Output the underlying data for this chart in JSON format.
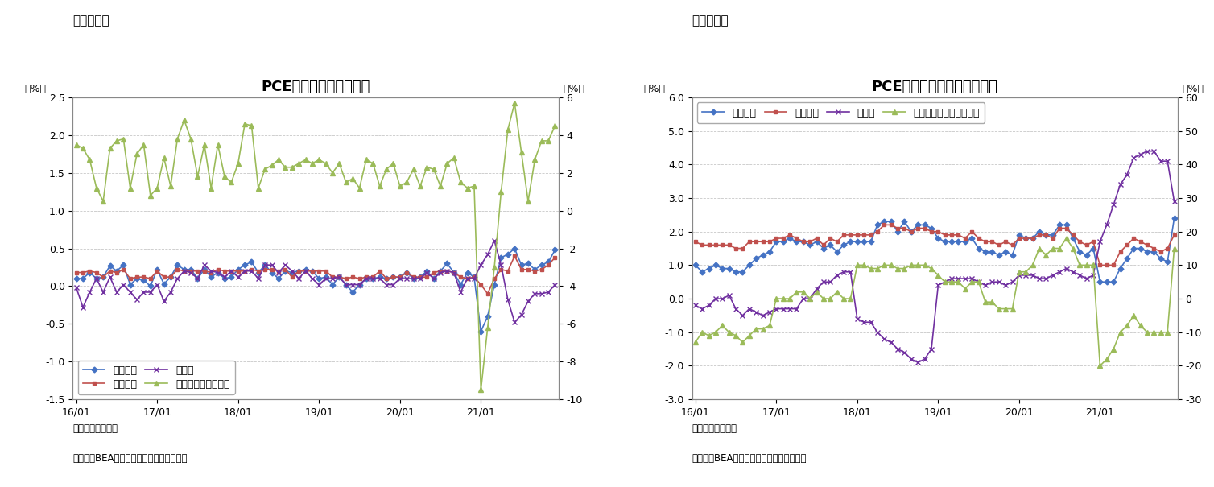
{
  "panel_label_left": "（図表６）",
  "panel_label_right": "（図表７）",
  "background_color": "#ffffff",
  "grid_color": "#c8c8c8",
  "line_width": 1.2,
  "marker_size": 4,
  "title_fontsize": 13,
  "label_fontsize": 9,
  "tick_fontsize": 9,
  "legend_fontsize": 9,
  "note_fontsize": 8.5,
  "fig6": {
    "title": "PCE価格指数（前月比）",
    "ylabel_left": "（%）",
    "ylabel_right": "（%）",
    "ylim_left": [
      -1.5,
      2.5
    ],
    "ylim_right": [
      -10,
      6
    ],
    "yticks_left": [
      -1.5,
      -1.0,
      -0.5,
      0.0,
      0.5,
      1.0,
      1.5,
      2.0,
      2.5
    ],
    "yticks_right": [
      -10,
      -8,
      -6,
      -4,
      -2,
      0,
      2,
      4,
      6
    ],
    "xtick_labels": [
      "16/01",
      "17/01",
      "18/01",
      "19/01",
      "20/01",
      "21/01"
    ],
    "note1": "（注）季節調整済",
    "note2": "（資料）BEAよりニッセイ基礎研究所作成",
    "legend_labels": [
      "総合指数",
      "コア指数",
      "食料品",
      "エネルギー（右軸）"
    ],
    "legend_loc": "lower left",
    "legend_ncol": 2,
    "colors": [
      "#4472c4",
      "#c0504d",
      "#7030a0",
      "#9bbb59"
    ],
    "markers": [
      "D",
      "s",
      "x",
      "^"
    ],
    "total": [
      0.1,
      0.1,
      0.18,
      0.1,
      0.12,
      0.27,
      0.2,
      0.28,
      0.02,
      0.1,
      0.08,
      0.0,
      0.22,
      0.03,
      0.12,
      0.28,
      0.22,
      0.22,
      0.1,
      0.22,
      0.12,
      0.18,
      0.1,
      0.12,
      0.22,
      0.28,
      0.32,
      0.18,
      0.28,
      0.18,
      0.1,
      0.2,
      0.18,
      0.2,
      0.22,
      0.2,
      0.1,
      0.12,
      0.02,
      0.12,
      0.02,
      -0.08,
      0.02,
      0.1,
      0.1,
      0.12,
      0.1,
      0.12,
      0.12,
      0.18,
      0.1,
      0.12,
      0.2,
      0.1,
      0.2,
      0.3,
      0.18,
      0.02,
      0.18,
      0.12,
      -0.6,
      -0.4,
      0.02,
      0.38,
      0.42,
      0.5,
      0.28,
      0.3,
      0.22,
      0.28,
      0.32,
      0.48
    ],
    "core": [
      0.18,
      0.18,
      0.2,
      0.18,
      0.12,
      0.2,
      0.18,
      0.22,
      0.1,
      0.12,
      0.12,
      0.1,
      0.2,
      0.12,
      0.12,
      0.22,
      0.2,
      0.2,
      0.2,
      0.2,
      0.18,
      0.22,
      0.2,
      0.2,
      0.2,
      0.2,
      0.22,
      0.2,
      0.22,
      0.22,
      0.2,
      0.22,
      0.12,
      0.2,
      0.2,
      0.2,
      0.2,
      0.2,
      0.12,
      0.12,
      0.1,
      0.12,
      0.1,
      0.12,
      0.12,
      0.2,
      0.1,
      0.12,
      0.12,
      0.18,
      0.12,
      0.12,
      0.12,
      0.18,
      0.2,
      0.2,
      0.18,
      0.12,
      0.1,
      0.12,
      0.02,
      -0.1,
      0.1,
      0.22,
      0.2,
      0.4,
      0.22,
      0.22,
      0.2,
      0.22,
      0.28,
      0.38
    ],
    "food": [
      -0.02,
      -0.28,
      -0.08,
      0.1,
      -0.08,
      0.12,
      -0.08,
      0.02,
      -0.08,
      -0.18,
      -0.08,
      -0.08,
      0.02,
      -0.2,
      -0.08,
      0.1,
      0.2,
      0.18,
      0.1,
      0.28,
      0.2,
      0.18,
      0.12,
      0.2,
      0.12,
      0.2,
      0.2,
      0.1,
      0.28,
      0.28,
      0.18,
      0.28,
      0.2,
      0.1,
      0.2,
      0.1,
      0.02,
      0.1,
      0.1,
      0.12,
      0.02,
      0.02,
      0.02,
      0.1,
      0.1,
      0.1,
      0.02,
      0.02,
      0.1,
      0.1,
      0.1,
      0.1,
      0.18,
      0.1,
      0.18,
      0.2,
      0.18,
      -0.08,
      0.1,
      0.1,
      0.28,
      0.42,
      0.6,
      0.28,
      -0.18,
      -0.48,
      -0.38,
      -0.2,
      -0.1,
      -0.1,
      -0.08,
      0.02
    ],
    "energy": [
      3.5,
      3.3,
      2.7,
      1.2,
      0.5,
      3.3,
      3.7,
      3.8,
      1.2,
      3.0,
      3.5,
      0.8,
      1.2,
      2.8,
      1.3,
      3.8,
      4.8,
      3.8,
      1.8,
      3.5,
      1.2,
      3.5,
      1.8,
      1.5,
      2.5,
      4.6,
      4.5,
      1.2,
      2.2,
      2.4,
      2.7,
      2.3,
      2.3,
      2.5,
      2.7,
      2.5,
      2.7,
      2.5,
      2.0,
      2.5,
      1.5,
      1.7,
      1.2,
      2.7,
      2.5,
      1.3,
      2.2,
      2.5,
      1.3,
      1.5,
      2.2,
      1.3,
      2.3,
      2.2,
      1.3,
      2.5,
      2.8,
      1.5,
      1.2,
      1.3,
      -9.5,
      -6.2,
      -3.0,
      1.0,
      4.3,
      5.7,
      3.1,
      0.5,
      2.7,
      3.7,
      3.7,
      4.5
    ]
  },
  "fig7": {
    "title": "PCE価格指数（前年同月比）",
    "ylabel_left": "（%）",
    "ylabel_right": "（%）",
    "ylim_left": [
      -3,
      6
    ],
    "ylim_right": [
      -30,
      60
    ],
    "yticks_left": [
      -3,
      -2,
      -1,
      0,
      1,
      2,
      3,
      4,
      5,
      6
    ],
    "yticks_right": [
      -30,
      -20,
      -10,
      0,
      10,
      20,
      30,
      40,
      50,
      60
    ],
    "xtick_labels": [
      "16/01",
      "17/01",
      "18/01",
      "19/01",
      "20/01",
      "21/01"
    ],
    "note1": "（注）季節調整済",
    "note2": "（資料）BEAよりニッセイ基礎研究所作成",
    "legend_labels": [
      "総合指数",
      "コア指数",
      "食料品",
      "エネルギー関連（右軸）"
    ],
    "legend_loc": "upper left",
    "legend_ncol": 4,
    "colors": [
      "#4472c4",
      "#c0504d",
      "#7030a0",
      "#9bbb59"
    ],
    "markers": [
      "D",
      "s",
      "x",
      "^"
    ],
    "total": [
      1.0,
      0.8,
      0.9,
      1.0,
      0.9,
      0.9,
      0.8,
      0.8,
      1.0,
      1.2,
      1.3,
      1.4,
      1.7,
      1.7,
      1.8,
      1.7,
      1.7,
      1.6,
      1.7,
      1.5,
      1.6,
      1.4,
      1.6,
      1.7,
      1.7,
      1.7,
      1.7,
      2.2,
      2.3,
      2.3,
      2.0,
      2.3,
      2.0,
      2.2,
      2.2,
      2.1,
      1.8,
      1.7,
      1.7,
      1.7,
      1.7,
      1.8,
      1.5,
      1.4,
      1.4,
      1.3,
      1.4,
      1.3,
      1.9,
      1.8,
      1.8,
      2.0,
      1.9,
      1.9,
      2.2,
      2.2,
      1.8,
      1.4,
      1.3,
      1.5,
      0.5,
      0.5,
      0.5,
      0.9,
      1.2,
      1.5,
      1.5,
      1.4,
      1.4,
      1.2,
      1.1,
      2.4
    ],
    "core": [
      1.7,
      1.6,
      1.6,
      1.6,
      1.6,
      1.6,
      1.5,
      1.5,
      1.7,
      1.7,
      1.7,
      1.7,
      1.8,
      1.8,
      1.9,
      1.8,
      1.7,
      1.7,
      1.8,
      1.6,
      1.8,
      1.7,
      1.9,
      1.9,
      1.9,
      1.9,
      1.9,
      2.0,
      2.2,
      2.2,
      2.1,
      2.1,
      2.0,
      2.1,
      2.1,
      2.0,
      2.0,
      1.9,
      1.9,
      1.9,
      1.8,
      2.0,
      1.8,
      1.7,
      1.7,
      1.6,
      1.7,
      1.6,
      1.8,
      1.8,
      1.8,
      1.9,
      1.9,
      1.8,
      2.1,
      2.1,
      1.9,
      1.7,
      1.6,
      1.7,
      1.0,
      1.0,
      1.0,
      1.4,
      1.6,
      1.8,
      1.7,
      1.6,
      1.5,
      1.4,
      1.5,
      1.9
    ],
    "food": [
      -0.2,
      -0.3,
      -0.2,
      0.0,
      0.0,
      0.1,
      -0.3,
      -0.5,
      -0.3,
      -0.4,
      -0.5,
      -0.4,
      -0.3,
      -0.3,
      -0.3,
      -0.3,
      0.0,
      0.0,
      0.3,
      0.5,
      0.5,
      0.7,
      0.8,
      0.8,
      -0.6,
      -0.7,
      -0.7,
      -1.0,
      -1.2,
      -1.3,
      -1.5,
      -1.6,
      -1.8,
      -1.9,
      -1.8,
      -1.5,
      0.4,
      0.5,
      0.6,
      0.6,
      0.6,
      0.6,
      0.5,
      0.4,
      0.5,
      0.5,
      0.4,
      0.5,
      0.7,
      0.7,
      0.7,
      0.6,
      0.6,
      0.7,
      0.8,
      0.9,
      0.8,
      0.7,
      0.6,
      0.7,
      1.7,
      2.2,
      2.8,
      3.4,
      3.7,
      4.2,
      4.3,
      4.4,
      4.4,
      4.1,
      4.1,
      2.9
    ],
    "energy": [
      -13,
      -10,
      -11,
      -10,
      -8,
      -10,
      -11,
      -13,
      -11,
      -9,
      -9,
      -8,
      0,
      0,
      0,
      2,
      2,
      0,
      2,
      0,
      0,
      2,
      0,
      0,
      10,
      10,
      9,
      9,
      10,
      10,
      9,
      9,
      10,
      10,
      10,
      9,
      7,
      5,
      5,
      5,
      3,
      5,
      5,
      -1,
      -1,
      -3,
      -3,
      -3,
      8,
      8,
      10,
      15,
      13,
      15,
      15,
      18,
      15,
      10,
      10,
      10,
      -20,
      -18,
      -15,
      -10,
      -8,
      -5,
      -8,
      -10,
      -10,
      -10,
      -10,
      15
    ]
  }
}
